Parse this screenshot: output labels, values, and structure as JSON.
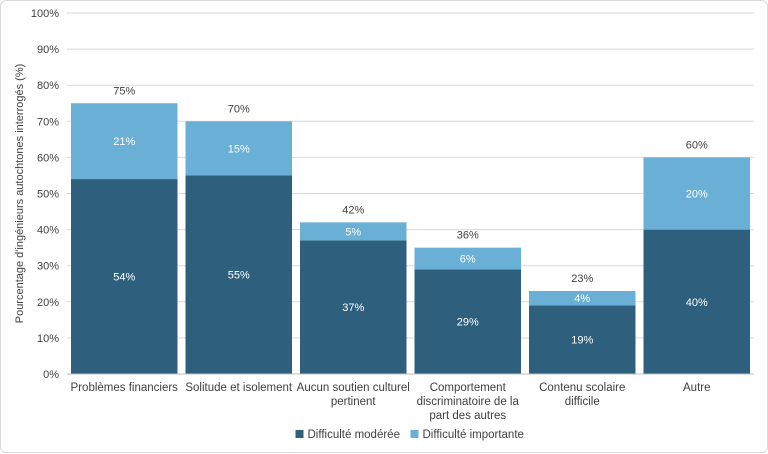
{
  "chart_data": {
    "type": "bar",
    "stacked": true,
    "categories": [
      [
        "Problèmes financiers"
      ],
      [
        "Solitude et isolement"
      ],
      [
        "Aucun soutien culturel",
        "pertinent"
      ],
      [
        "Comportement",
        "discriminatoire de la",
        "part des autres"
      ],
      [
        "Contenu scolaire",
        "difficile"
      ],
      [
        "Autre"
      ]
    ],
    "series": [
      {
        "name": "Difficulté modérée",
        "color": "#2e5f7c",
        "values": [
          54,
          55,
          37,
          29,
          19,
          40
        ]
      },
      {
        "name": "Difficulté importante",
        "color": "#6aafd6",
        "values": [
          21,
          15,
          5,
          6,
          4,
          20
        ]
      }
    ],
    "totals": [
      75,
      70,
      42,
      36,
      23,
      60
    ],
    "ylabel": "Pourcentage d'ingénieurs autochtones interrogés (%)",
    "ylim": [
      0,
      100
    ],
    "yticks": [
      "0%",
      "10%",
      "20%",
      "30%",
      "40%",
      "50%",
      "60%",
      "70%",
      "80%",
      "90%",
      "100%"
    ],
    "value_suffix": "%",
    "grid": true,
    "legend_position": "bottom"
  }
}
